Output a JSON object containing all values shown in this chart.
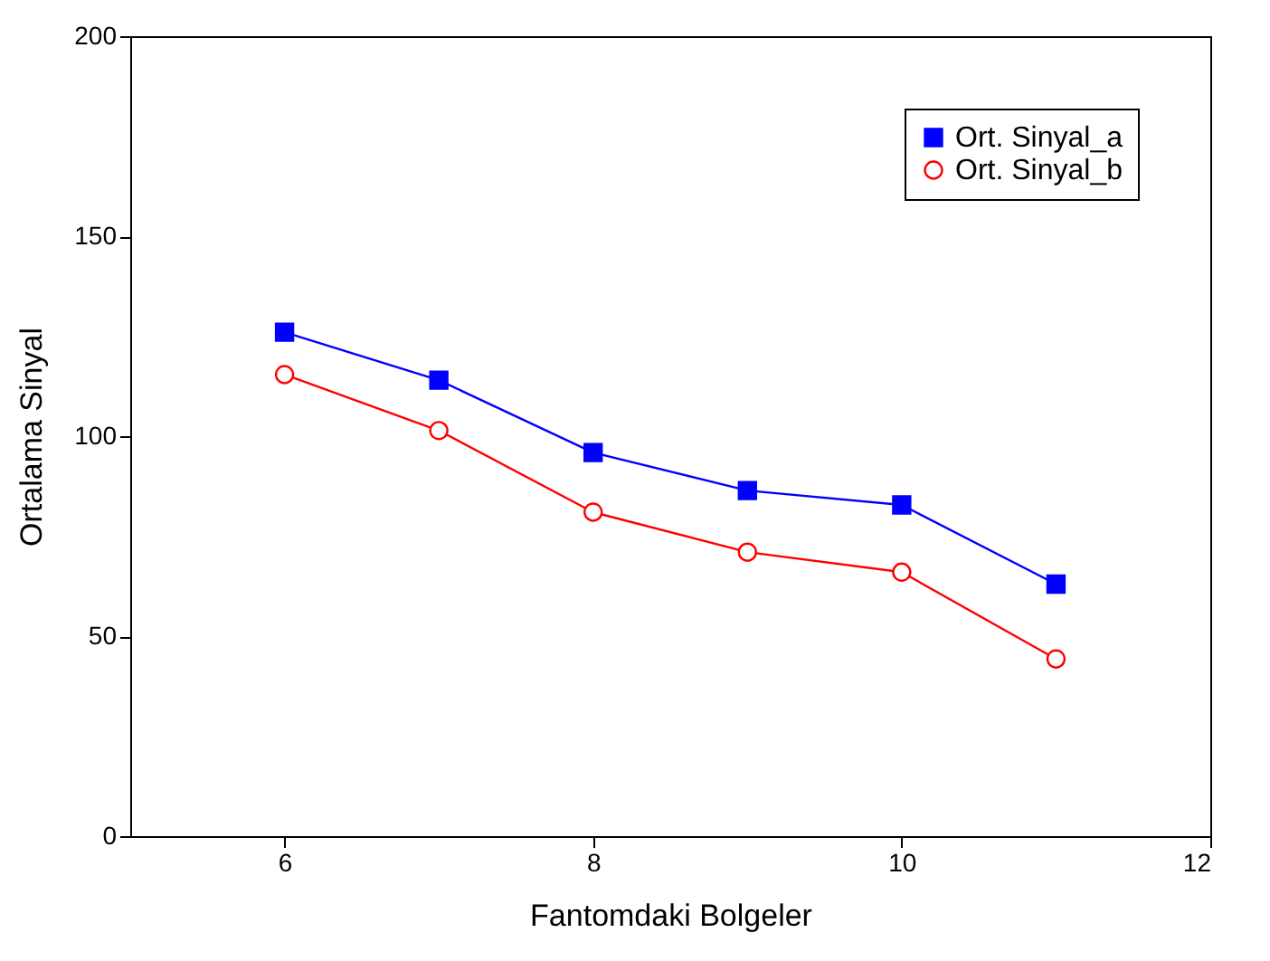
{
  "chart_data": {
    "type": "line",
    "xlabel": "Fantomdaki Bolgeler",
    "ylabel": "Ortalama Sinyal",
    "x": [
      6,
      7,
      8,
      9,
      10,
      11
    ],
    "series": [
      {
        "name": "Ort. Sinyal_a",
        "color": "#0000ff",
        "marker": "square",
        "values": [
          126,
          114,
          95.9,
          86.4,
          82.8,
          63
        ]
      },
      {
        "name": "Ort. Sinyal_b",
        "color": "#ff0000",
        "marker": "circle",
        "values": [
          115.4,
          101.4,
          81,
          71,
          66,
          44.3
        ]
      }
    ],
    "xlim": [
      5,
      12
    ],
    "xticks": [
      6,
      8,
      10,
      12
    ],
    "ylim": [
      0,
      200
    ],
    "yticks": [
      0,
      50,
      100,
      150,
      200
    ],
    "grid": false,
    "legend": "top right",
    "line_style": "solid"
  }
}
